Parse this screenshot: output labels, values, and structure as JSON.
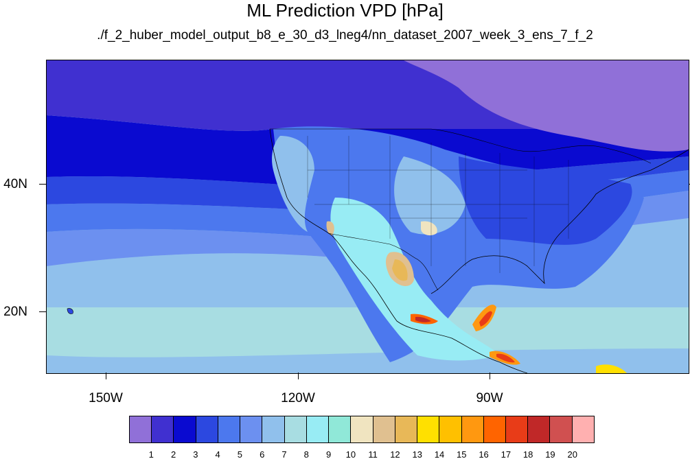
{
  "title": "ML Prediction VPD [hPa]",
  "subtitle": "./f_2_huber_model_output_b8_e_30_d3_lneg4/nn_dataset_2007_week_3_ens_7_f_2",
  "map": {
    "lat_labels": [
      "40N",
      "20N"
    ],
    "lon_labels": [
      "150W",
      "120W",
      "90W"
    ],
    "extent": {
      "lon": [
        -160,
        -60
      ],
      "lat": [
        10,
        59
      ]
    },
    "borders": "coastlines, national and US state borders"
  },
  "colorbar": {
    "labels": [
      "1",
      "2",
      "3",
      "4",
      "5",
      "6",
      "7",
      "8",
      "9",
      "10",
      "11",
      "12",
      "13",
      "14",
      "15",
      "16",
      "17",
      "18",
      "19",
      "20"
    ],
    "colors": [
      "#9070d8",
      "#4030d0",
      "#0a0ad0",
      "#2c48e0",
      "#4c78ee",
      "#6c90f0",
      "#90c0ec",
      "#a8dde2",
      "#98ecf4",
      "#90e8d8",
      "#f0e4c0",
      "#e0c090",
      "#e8b858",
      "#ffe000",
      "#ffc000",
      "#ff9810",
      "#ff6400",
      "#e83c18",
      "#c02828",
      "#d05050",
      "#ffb0b0"
    ]
  }
}
